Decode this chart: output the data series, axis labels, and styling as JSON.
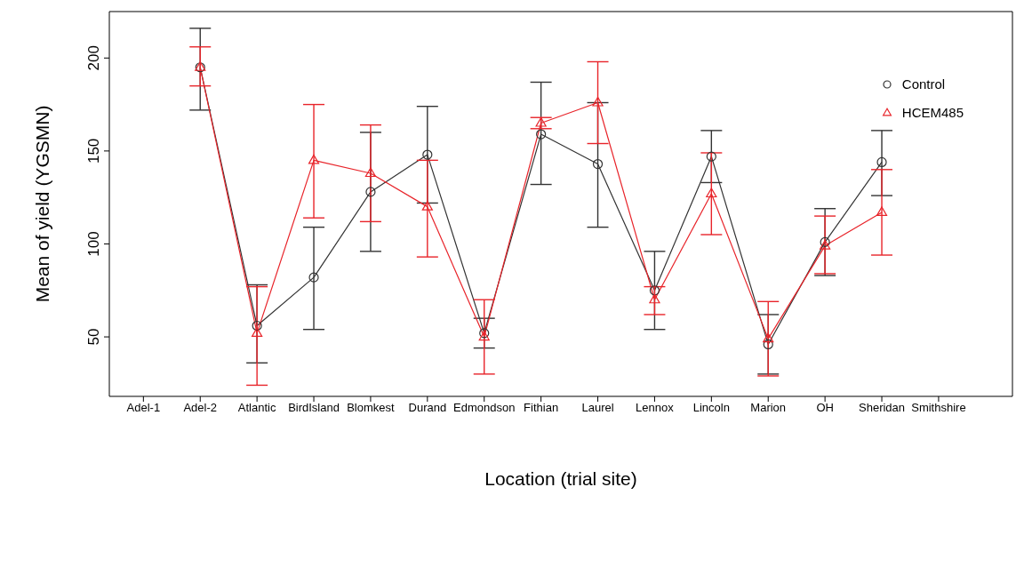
{
  "chart_data": {
    "type": "line",
    "xlabel": "Location (trial site)",
    "ylabel": "Mean of yield (YGSMN)",
    "categories": [
      "Adel-1",
      "Adel-2",
      "Atlantic",
      "BirdIsland",
      "Blomkest",
      "Durand",
      "Edmondson",
      "Fithian",
      "Laurel",
      "Lennox",
      "Lincoln",
      "Marion",
      "OH",
      "Sheridan",
      "Smithshire"
    ],
    "series": [
      {
        "name": "Control",
        "color": "#333333",
        "marker": "circle",
        "values": [
          null,
          195,
          56,
          82,
          128,
          148,
          52,
          159,
          143,
          75,
          147,
          46,
          101,
          144,
          null
        ],
        "errors": [
          null,
          [
            172,
            216
          ],
          [
            36,
            78
          ],
          [
            54,
            109
          ],
          [
            96,
            160
          ],
          [
            122,
            174
          ],
          [
            44,
            60
          ],
          [
            132,
            187
          ],
          [
            109,
            176
          ],
          [
            54,
            96
          ],
          [
            133,
            161
          ],
          [
            30,
            62
          ],
          [
            83,
            119
          ],
          [
            126,
            161
          ],
          null
        ]
      },
      {
        "name": "HCEM485",
        "color": "#e8242a",
        "marker": "triangle",
        "values": [
          null,
          195,
          52,
          145,
          138,
          120,
          50,
          165,
          176,
          70,
          127,
          49,
          99,
          117,
          null
        ],
        "errors": [
          null,
          [
            185,
            206
          ],
          [
            24,
            77
          ],
          [
            114,
            175
          ],
          [
            112,
            164
          ],
          [
            93,
            145
          ],
          [
            30,
            70
          ],
          [
            162,
            168
          ],
          [
            154,
            198
          ],
          [
            62,
            77
          ],
          [
            105,
            149
          ],
          [
            29,
            69
          ],
          [
            84,
            115
          ],
          [
            94,
            140
          ],
          null
        ]
      }
    ],
    "ylim": [
      18,
      225
    ],
    "yticks": [
      50,
      100,
      150,
      200
    ],
    "legend": "top right",
    "grid": false
  }
}
